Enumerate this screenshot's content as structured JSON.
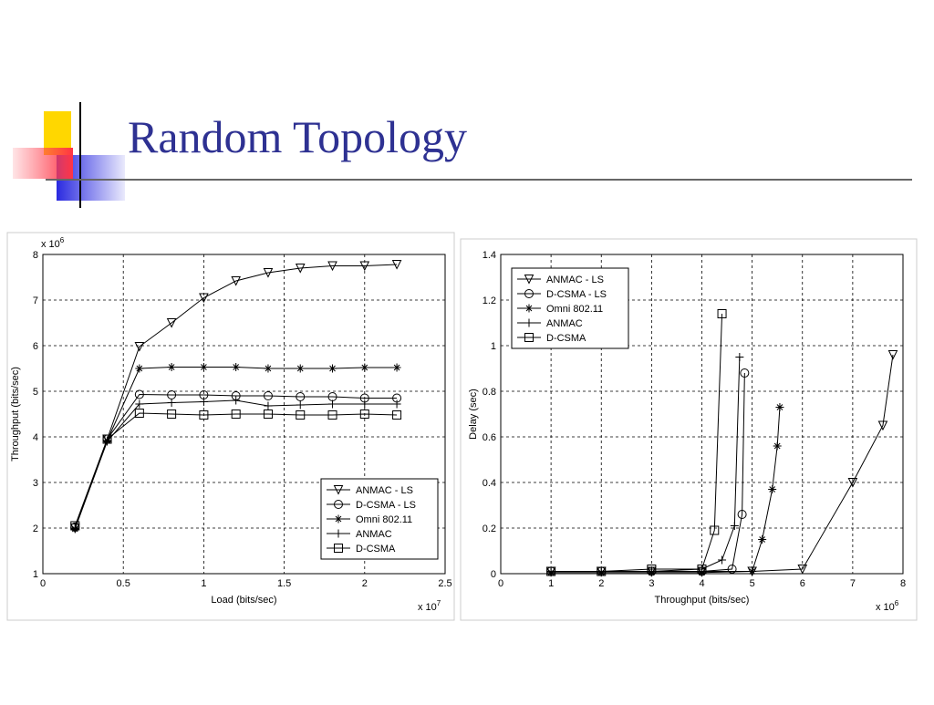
{
  "title": "Random Topology",
  "chart_data": [
    {
      "type": "line",
      "x_label": "Load (bits/sec)",
      "y_label": "Throughput (bits/sec)",
      "x_scale": {
        "text": "x 10",
        "exponent": "7"
      },
      "y_scale": {
        "text": "x 10",
        "exponent": "6"
      },
      "xlim": [
        0,
        2.5
      ],
      "xticks": [
        0,
        0.5,
        1,
        1.5,
        2,
        2.5
      ],
      "ylim": [
        1,
        8
      ],
      "yticks": [
        1,
        2,
        3,
        4,
        5,
        6,
        7,
        8
      ],
      "grid": true,
      "legend": "lower right",
      "x": [
        0.2,
        0.4,
        0.6,
        0.8,
        1.0,
        1.2,
        1.4,
        1.6,
        1.8,
        2.0,
        2.2
      ],
      "series": [
        {
          "name": "ANMAC - LS",
          "color": "#000000",
          "marker": "triangle-down",
          "values": [
            2.0,
            3.95,
            5.98,
            6.5,
            7.05,
            7.42,
            7.6,
            7.7,
            7.75,
            7.75,
            7.78
          ]
        },
        {
          "name": "D-CSMA - LS",
          "color": "#000000",
          "marker": "circle",
          "values": [
            2.02,
            3.95,
            4.93,
            4.92,
            4.92,
            4.9,
            4.9,
            4.88,
            4.88,
            4.85,
            4.85
          ]
        },
        {
          "name": "Omni 802.11",
          "color": "#000000",
          "marker": "star",
          "values": [
            1.98,
            3.92,
            5.5,
            5.53,
            5.53,
            5.53,
            5.5,
            5.5,
            5.5,
            5.52,
            5.52
          ]
        },
        {
          "name": "ANMAC",
          "color": "#000000",
          "marker": "plus",
          "values": [
            2.0,
            3.9,
            4.72,
            4.75,
            4.77,
            4.8,
            4.68,
            4.7,
            4.72,
            4.72,
            4.72
          ]
        },
        {
          "name": "D-CSMA",
          "color": "#000000",
          "marker": "square",
          "values": [
            2.05,
            3.95,
            4.52,
            4.5,
            4.48,
            4.5,
            4.5,
            4.48,
            4.48,
            4.5,
            4.48
          ]
        }
      ]
    },
    {
      "type": "line",
      "x_label": "Throughput (bits/sec)",
      "y_label": "Delay (sec)",
      "x_scale": {
        "text": "x 10",
        "exponent": "6"
      },
      "xlim": [
        0,
        8
      ],
      "xticks": [
        0,
        1,
        2,
        3,
        4,
        5,
        6,
        7,
        8
      ],
      "ylim": [
        0,
        1.4
      ],
      "yticks": [
        0,
        0.2,
        0.4,
        0.6,
        0.8,
        1,
        1.2,
        1.4
      ],
      "grid": true,
      "legend": "upper left",
      "series": [
        {
          "name": "ANMAC - LS",
          "color": "#000000",
          "marker": "triangle-down",
          "x": [
            1,
            2,
            3,
            4,
            5,
            6,
            7,
            7.6,
            7.8
          ],
          "values": [
            0.01,
            0.01,
            0.01,
            0.01,
            0.01,
            0.02,
            0.4,
            0.65,
            0.96
          ]
        },
        {
          "name": "D-CSMA - LS",
          "color": "#000000",
          "marker": "circle",
          "x": [
            1,
            2,
            3,
            4,
            4.6,
            4.8,
            4.85
          ],
          "values": [
            0.01,
            0.01,
            0.01,
            0.01,
            0.02,
            0.26,
            0.88
          ]
        },
        {
          "name": "Omni 802.11",
          "color": "#000000",
          "marker": "star",
          "x": [
            1,
            2,
            3,
            4,
            5,
            5.2,
            5.4,
            5.5,
            5.55
          ],
          "values": [
            0.005,
            0.005,
            0.005,
            0.005,
            0.01,
            0.15,
            0.37,
            0.56,
            0.73
          ]
        },
        {
          "name": "ANMAC",
          "color": "#000000",
          "marker": "plus",
          "x": [
            1,
            2,
            3,
            4,
            4.4,
            4.65,
            4.75
          ],
          "values": [
            0.01,
            0.01,
            0.01,
            0.02,
            0.06,
            0.21,
            0.95
          ]
        },
        {
          "name": "D-CSMA",
          "color": "#000000",
          "marker": "square",
          "x": [
            1,
            2,
            3,
            4,
            4.25,
            4.4
          ],
          "values": [
            0.01,
            0.01,
            0.02,
            0.02,
            0.19,
            1.14
          ]
        }
      ]
    }
  ]
}
